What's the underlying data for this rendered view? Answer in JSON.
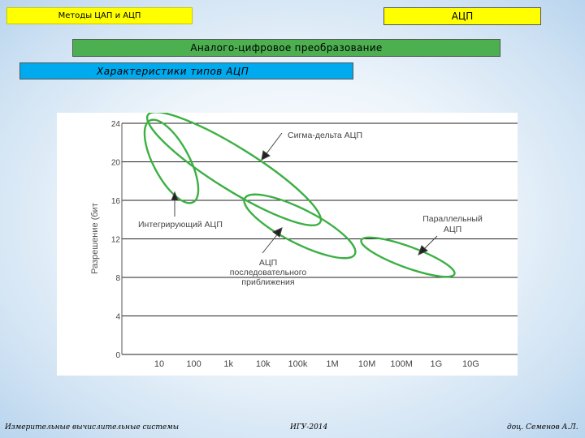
{
  "header": {
    "left_tag": "Методы ЦАП и АЦП",
    "right_tag": "АЦП",
    "section_title": "Аналого-цифровое преобразование",
    "subsection_title": "Характеристики типов АЦП"
  },
  "chart_data": {
    "type": "diagram",
    "ylabel": "Разрешение (бит",
    "y_ticks": [
      "24",
      "20",
      "16",
      "12",
      "8",
      "4",
      "0"
    ],
    "x_ticks": [
      "10",
      "100",
      "1k",
      "10k",
      "100k",
      "1M",
      "10M",
      "100M",
      "1G",
      "10G"
    ],
    "regions": [
      {
        "name": "Интегрирующий АЦП",
        "label_lines": [
          "Интегрирующий АЦП"
        ]
      },
      {
        "name": "Сигма-дельта АЦП",
        "label_lines": [
          "Сигма-дельта АЦП"
        ]
      },
      {
        "name": "АЦП последовательного приближения",
        "label_lines": [
          "АЦП",
          "последовательного",
          "приближения"
        ]
      },
      {
        "name": "Параллельный АЦП",
        "label_lines": [
          "Параллельный",
          "АЦП"
        ]
      }
    ]
  },
  "footer": {
    "left": "Измерительные вычислительные системы",
    "center": "ИГУ-2014",
    "right": "доц. Семенов А.Л."
  },
  "colors": {
    "yellow": "#ffff00",
    "green_bar": "#4caf50",
    "blue_bar": "#00aaee",
    "ellipse": "#3cb043"
  }
}
